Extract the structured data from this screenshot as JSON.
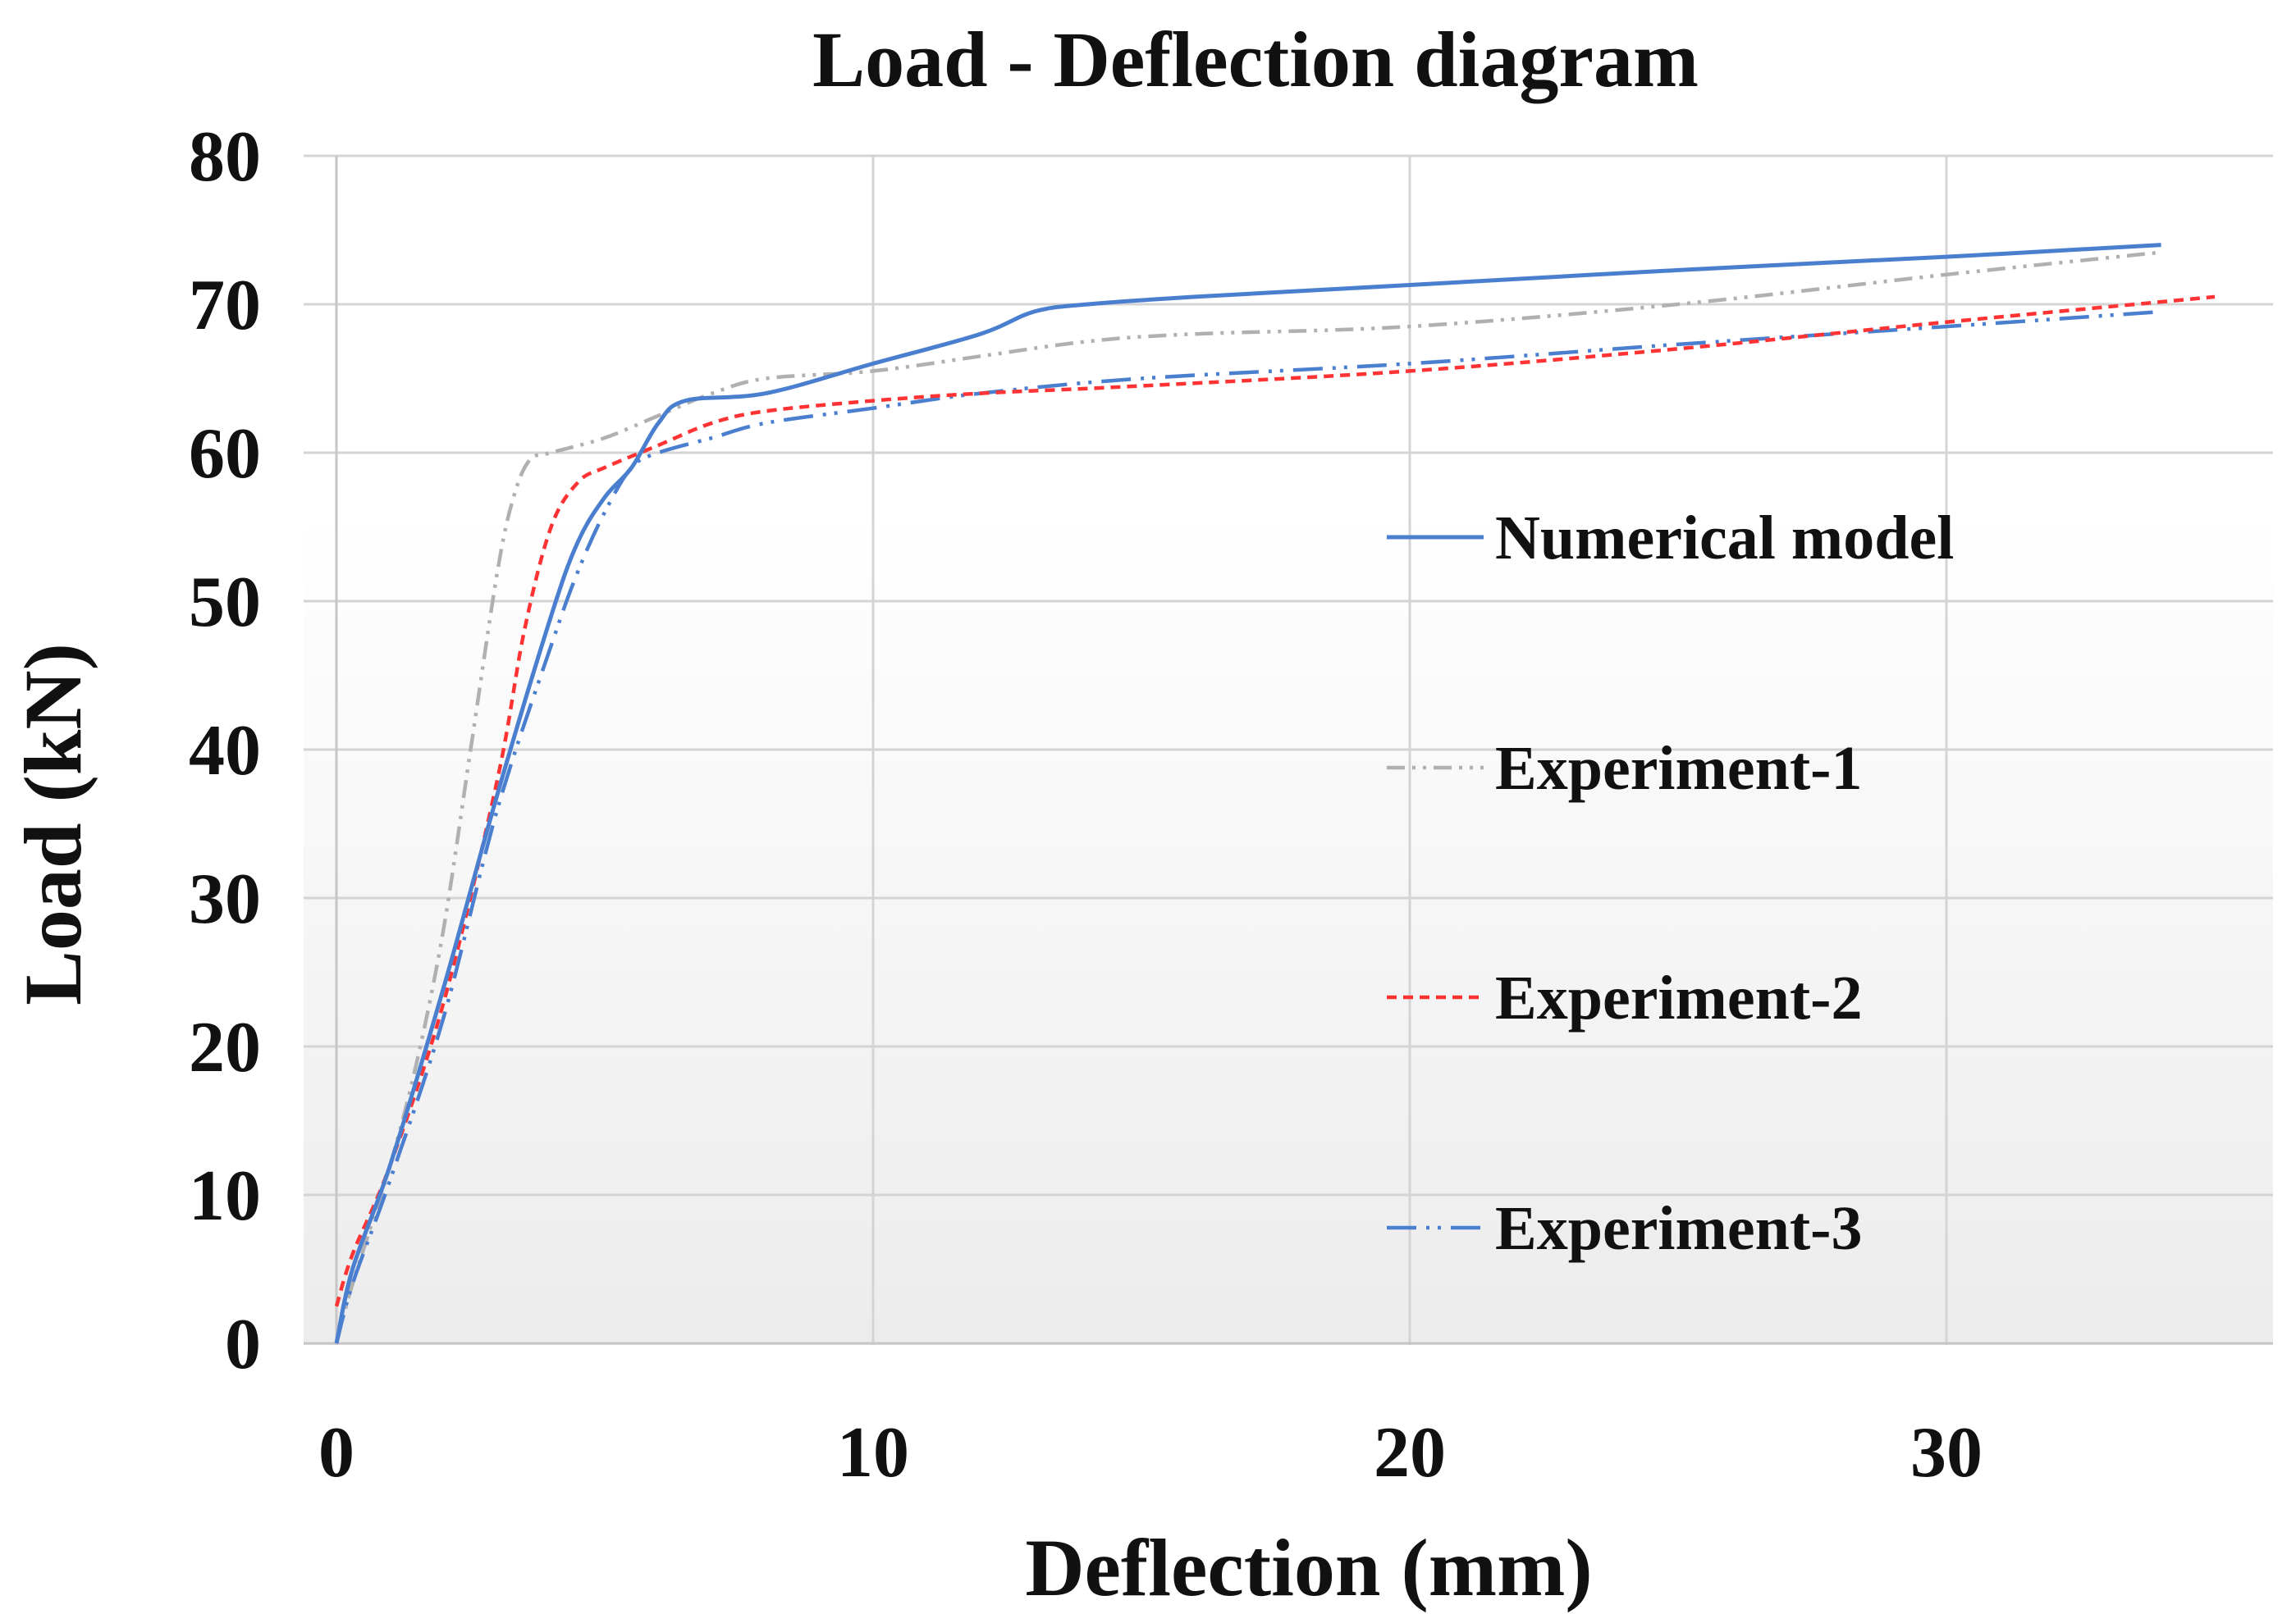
{
  "chart_data": {
    "type": "line",
    "title": "Load - Deflection diagram",
    "xlabel": "Deflection (mm)",
    "ylabel": "Load (kN)",
    "xlim": [
      0,
      36
    ],
    "ylim": [
      0,
      80
    ],
    "xticks": [
      0,
      10,
      20,
      30
    ],
    "yticks": [
      0,
      10,
      20,
      30,
      40,
      50,
      60,
      70,
      80
    ],
    "xtick_labels": [
      "0",
      "10",
      "20",
      "30"
    ],
    "ytick_labels": [
      "0",
      "10",
      "20",
      "30",
      "40",
      "50",
      "60",
      "70",
      "80"
    ],
    "grid": true,
    "legend_position": "right",
    "series": [
      {
        "name": "Numerical model",
        "color": "#4a7fd0",
        "dash": "solid",
        "x": [
          0,
          0.3,
          1,
          2,
          3,
          4,
          4.5,
          5,
          5.5,
          6,
          6.5,
          8,
          10,
          12,
          13,
          14,
          16,
          20,
          25,
          30,
          34
        ],
        "y": [
          0,
          5,
          12,
          24,
          37,
          49,
          54,
          57,
          59,
          62,
          63.5,
          64,
          66,
          68,
          69.5,
          70,
          70.5,
          71.3,
          72.3,
          73.2,
          74
        ]
      },
      {
        "name": "Experiment-1",
        "color": "#b0b0b0",
        "dash": "dash-dot-dot",
        "x": [
          0,
          0.3,
          1,
          1.5,
          2,
          2.5,
          3,
          3.3,
          3.6,
          4,
          5,
          6,
          7,
          8,
          10,
          12,
          14,
          16,
          20,
          25,
          30,
          34
        ],
        "y": [
          0,
          4,
          12,
          19,
          28,
          40,
          52,
          57,
          59.5,
          60,
          61,
          62.5,
          64,
          65,
          65.5,
          66.5,
          67.5,
          68,
          68.5,
          70,
          72,
          73.5
        ]
      },
      {
        "name": "Experiment-2",
        "color": "#ff3333",
        "dash": "short-dash",
        "x": [
          0,
          0.3,
          1,
          2,
          3,
          3.5,
          4,
          4.5,
          5,
          6,
          7,
          8,
          10,
          12,
          15,
          20,
          25,
          30,
          35
        ],
        "y": [
          2.5,
          6,
          12,
          23,
          38,
          48,
          55,
          58,
          59,
          60.5,
          62,
          62.8,
          63.5,
          64,
          64.5,
          65.5,
          67,
          68.8,
          70.5
        ]
      },
      {
        "name": "Experiment-3",
        "color": "#4a7fd0",
        "dash": "long-dash-dot-dot",
        "x": [
          0,
          0.3,
          1,
          2,
          3,
          4,
          4.5,
          5,
          5.5,
          6,
          7,
          8,
          10,
          12,
          15,
          20,
          25,
          30,
          34
        ],
        "y": [
          0,
          4,
          11,
          22,
          36,
          47,
          52,
          56,
          59,
          60,
          61,
          62,
          63,
          64,
          65,
          66,
          67.3,
          68.5,
          69.5
        ]
      }
    ]
  }
}
